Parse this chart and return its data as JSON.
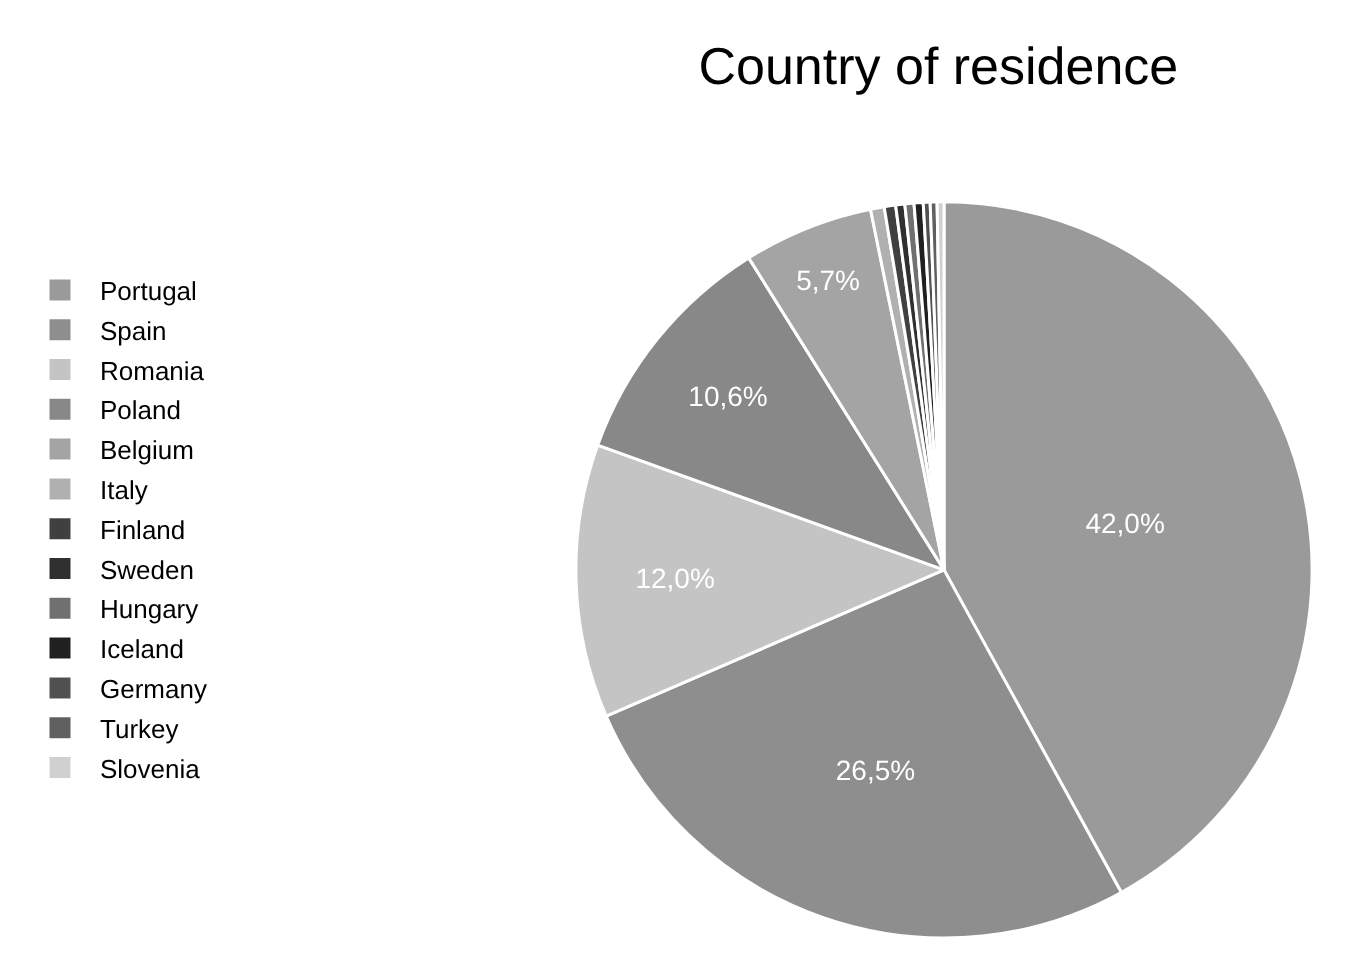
{
  "chart_data": {
    "type": "pie",
    "title": "Country of residence",
    "categories": [
      "Portugal",
      "Spain",
      "Romania",
      "Poland",
      "Belgium",
      "Italy",
      "Finland",
      "Sweden",
      "Hungary",
      "Iceland",
      "Germany",
      "Turkey",
      "Slovenia"
    ],
    "values": [
      42.0,
      26.5,
      12.0,
      10.6,
      5.7,
      0.6,
      0.5,
      0.4,
      0.4,
      0.4,
      0.3,
      0.3,
      0.3
    ],
    "value_labels": [
      "42,0%",
      "26,5%",
      "12,0%",
      "10,6%",
      "5,7%",
      null,
      null,
      null,
      null,
      null,
      null,
      null,
      null
    ],
    "colors": [
      "#9a9a9a",
      "#8e8e8e",
      "#c4c4c4",
      "#888888",
      "#a4a4a4",
      "#b0b0b0",
      "#404040",
      "#303030",
      "#707070",
      "#202020",
      "#505050",
      "#606060",
      "#d0d0d0"
    ],
    "legend": "left"
  }
}
